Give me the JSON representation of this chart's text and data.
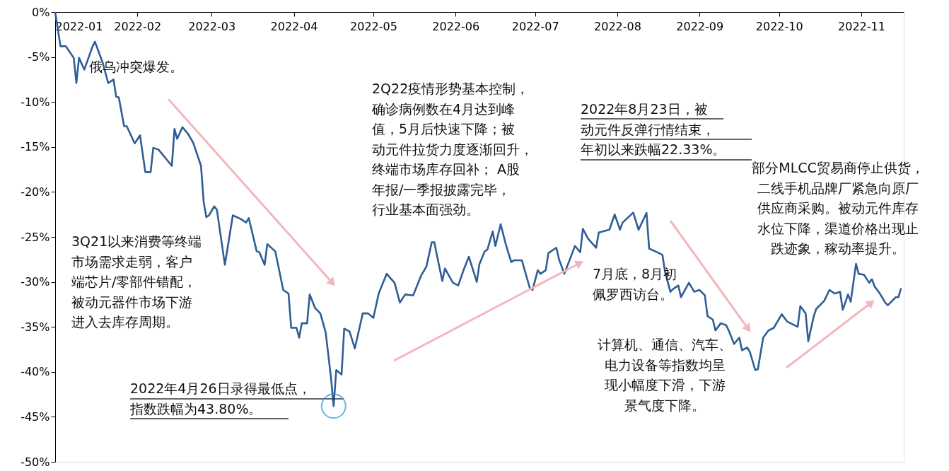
{
  "chart_data": {
    "type": "line",
    "x": [
      "2022-01-01",
      "2022-01-03",
      "2022-01-05",
      "2022-01-08",
      "2022-01-09",
      "2022-01-10",
      "2022-01-12",
      "2022-01-15",
      "2022-01-16",
      "2022-01-19",
      "2022-01-21",
      "2022-01-23",
      "2022-01-24",
      "2022-01-25",
      "2022-01-27",
      "2022-01-28",
      "2022-01-31",
      "2022-02-02",
      "2022-02-04",
      "2022-02-06",
      "2022-02-07",
      "2022-02-09",
      "2022-02-14",
      "2022-02-15",
      "2022-02-16",
      "2022-02-18",
      "2022-02-20",
      "2022-02-22",
      "2022-02-25",
      "2022-02-26",
      "2022-02-27",
      "2022-02-28",
      "2022-03-02",
      "2022-03-03",
      "2022-03-06",
      "2022-03-09",
      "2022-03-12",
      "2022-03-14",
      "2022-03-15",
      "2022-03-18",
      "2022-03-19",
      "2022-03-21",
      "2022-03-22",
      "2022-03-25",
      "2022-03-28",
      "2022-03-30",
      "2022-03-31",
      "2022-04-02",
      "2022-04-03",
      "2022-04-04",
      "2022-04-06",
      "2022-04-07",
      "2022-04-09",
      "2022-04-11",
      "2022-04-13",
      "2022-04-15",
      "2022-04-16",
      "2022-04-17",
      "2022-04-19",
      "2022-04-20",
      "2022-04-22",
      "2022-04-24",
      "2022-04-27",
      "2022-04-29",
      "2022-05-01",
      "2022-05-03",
      "2022-05-06",
      "2022-05-09",
      "2022-05-11",
      "2022-05-13",
      "2022-05-16",
      "2022-05-19",
      "2022-05-21",
      "2022-05-23",
      "2022-05-24",
      "2022-05-25",
      "2022-05-27",
      "2022-05-28",
      "2022-05-31",
      "2022-06-02",
      "2022-06-04",
      "2022-06-06",
      "2022-06-09",
      "2022-06-10",
      "2022-06-12",
      "2022-06-13",
      "2022-06-15",
      "2022-06-16",
      "2022-06-18",
      "2022-06-20",
      "2022-06-22",
      "2022-06-23",
      "2022-06-26",
      "2022-06-29",
      "2022-06-30",
      "2022-07-02",
      "2022-07-03",
      "2022-07-05",
      "2022-07-06",
      "2022-07-09",
      "2022-07-10",
      "2022-07-12",
      "2022-07-15",
      "2022-07-16",
      "2022-07-18",
      "2022-07-19",
      "2022-07-21",
      "2022-07-24",
      "2022-07-25",
      "2022-07-29",
      "2022-07-31",
      "2022-08-02",
      "2022-08-03",
      "2022-08-07",
      "2022-08-09",
      "2022-08-12",
      "2022-08-13",
      "2022-08-16",
      "2022-08-18",
      "2022-08-19",
      "2022-08-21",
      "2022-08-22",
      "2022-08-24",
      "2022-08-25",
      "2022-08-28",
      "2022-08-30",
      "2022-09-01",
      "2022-09-03",
      "2022-09-04",
      "2022-09-06",
      "2022-09-07",
      "2022-09-09",
      "2022-09-11",
      "2022-09-12",
      "2022-09-14",
      "2022-09-16",
      "2022-09-17",
      "2022-09-19",
      "2022-09-20",
      "2022-09-22",
      "2022-09-23",
      "2022-09-25",
      "2022-09-27",
      "2022-09-29",
      "2022-10-02",
      "2022-10-04",
      "2022-10-08",
      "2022-10-09",
      "2022-10-11",
      "2022-10-12",
      "2022-10-14",
      "2022-10-15",
      "2022-10-18",
      "2022-10-20",
      "2022-10-22",
      "2022-10-24",
      "2022-10-25",
      "2022-10-27",
      "2022-10-28",
      "2022-10-30",
      "2022-10-31",
      "2022-11-02",
      "2022-11-04",
      "2022-11-05",
      "2022-11-06",
      "2022-11-08",
      "2022-11-10",
      "2022-11-11",
      "2022-11-14",
      "2022-11-15",
      "2022-11-16"
    ],
    "series": [
      {
        "color": "#2f5d95",
        "values": [
          0,
          -3.8,
          -3.8,
          -5.1,
          -7.9,
          -5.1,
          -6.4,
          -3.9,
          -3.3,
          -5.7,
          -7.9,
          -7.5,
          -9.4,
          -9.5,
          -12.7,
          -12.7,
          -14.6,
          -13.7,
          -17.8,
          -17.8,
          -15.1,
          -15.3,
          -17.1,
          -13.0,
          -14.1,
          -12.8,
          -13.5,
          -14.5,
          -17.1,
          -21.1,
          -22.8,
          -22.6,
          -21.6,
          -22.0,
          -28.1,
          -22.6,
          -23.0,
          -23.4,
          -22.9,
          -26.6,
          -26.7,
          -28.1,
          -25.8,
          -26.6,
          -30.9,
          -31.3,
          -35.1,
          -35.1,
          -36.2,
          -34.6,
          -34.6,
          -31.4,
          -32.9,
          -33.5,
          -35.6,
          -40.6,
          -43.8,
          -39.8,
          -40.3,
          -35.2,
          -35.5,
          -37.4,
          -33.5,
          -33.5,
          -34.0,
          -31.3,
          -29.1,
          -30.1,
          -32.3,
          -31.4,
          -31.5,
          -29.3,
          -28.3,
          -25.6,
          -25.6,
          -27.1,
          -29.9,
          -28.5,
          -30.1,
          -30.4,
          -28.7,
          -27.2,
          -30.0,
          -28.0,
          -26.6,
          -26.4,
          -24.4,
          -26.0,
          -23.6,
          -25.9,
          -27.8,
          -27.6,
          -27.6,
          -30.7,
          -30.9,
          -28.7,
          -29.1,
          -28.7,
          -26.8,
          -26.2,
          -27.5,
          -29.1,
          -26.8,
          -26.0,
          -26.7,
          -24.1,
          -25.2,
          -26.2,
          -24.5,
          -24.2,
          -22.5,
          -24.2,
          -23.4,
          -22.3,
          -24.2,
          -22.33,
          -26.3,
          -26.7,
          -27.0,
          -28.9,
          -31.1,
          -30.8,
          -30.4,
          -31.7,
          -30.1,
          -31.1,
          -30.9,
          -31.5,
          -33.8,
          -34.2,
          -35.4,
          -34.6,
          -34.8,
          -35.4,
          -36.9,
          -36.2,
          -37.6,
          -37.3,
          -37.8,
          -39.8,
          -39.7,
          -36.2,
          -35.4,
          -35.1,
          -33.6,
          -34.4,
          -35.0,
          -32.7,
          -33.5,
          -36.6,
          -33.9,
          -33.0,
          -32.1,
          -30.9,
          -31.3,
          -31.1,
          -33.1,
          -31.4,
          -32.2,
          -28.0,
          -29.1,
          -29.2,
          -30.1,
          -29.7,
          -30.5,
          -31.3,
          -32.3,
          -32.6,
          -31.7,
          -31.7,
          -30.7
        ]
      }
    ],
    "xlim": [
      "2022-01-01",
      "2022-11-17"
    ],
    "xticks": [
      "2022-01",
      "2022-02",
      "2022-03",
      "2022-04",
      "2022-05",
      "2022-06",
      "2022-07",
      "2022-08",
      "2022-09",
      "2022-10",
      "2022-11"
    ],
    "ylim": [
      -50,
      0
    ],
    "yticks": [
      {
        "value": 0,
        "label": "0%"
      },
      {
        "value": -5,
        "label": "-5%"
      },
      {
        "value": -10,
        "label": "-10%"
      },
      {
        "value": -15,
        "label": "-15%"
      },
      {
        "value": -20,
        "label": "-20%"
      },
      {
        "value": -25,
        "label": "-25%"
      },
      {
        "value": -30,
        "label": "-30%"
      },
      {
        "value": -35,
        "label": "-35%"
      },
      {
        "value": -40,
        "label": "-40%"
      },
      {
        "value": -45,
        "label": "-45%"
      },
      {
        "value": -50,
        "label": "-50%"
      }
    ],
    "grid": false,
    "marker": "none",
    "line_style": "solid",
    "annotations": [
      "俄乌冲突爆发。",
      "3Q21以来消费等终端市场需求走弱，客户端芯片/零部件错配，被动元器件市场下游进入去库存周期。",
      {
        "text": "2022年4月26日录得最低点，指数跌幅为43.80%。",
        "x": "2022-04-16",
        "y": -43.8
      },
      "2Q22疫情形势基本控制，确诊病例数在4月达到峰值，5月后快速下降；被动元件拉货力度逐渐回升，终端市场库存回补； A股年报/一季报披露完毕，行业基本面强劲。",
      "2022年8月23日，被动元件反弹行情结束，年初以来跌幅22.33%。",
      "部分MLCC贸易商停止供货，二线手机品牌厂紧急向原厂供应商采购。被动元件库存水位下降，渠道价格出现止跌迹象，稼动率提升。",
      "7月底，8月初佩罗西访台。",
      "计算机、通信、汽车、电力设备等指数均呈现小幅度下滑，下游景气度下降。"
    ]
  }
}
